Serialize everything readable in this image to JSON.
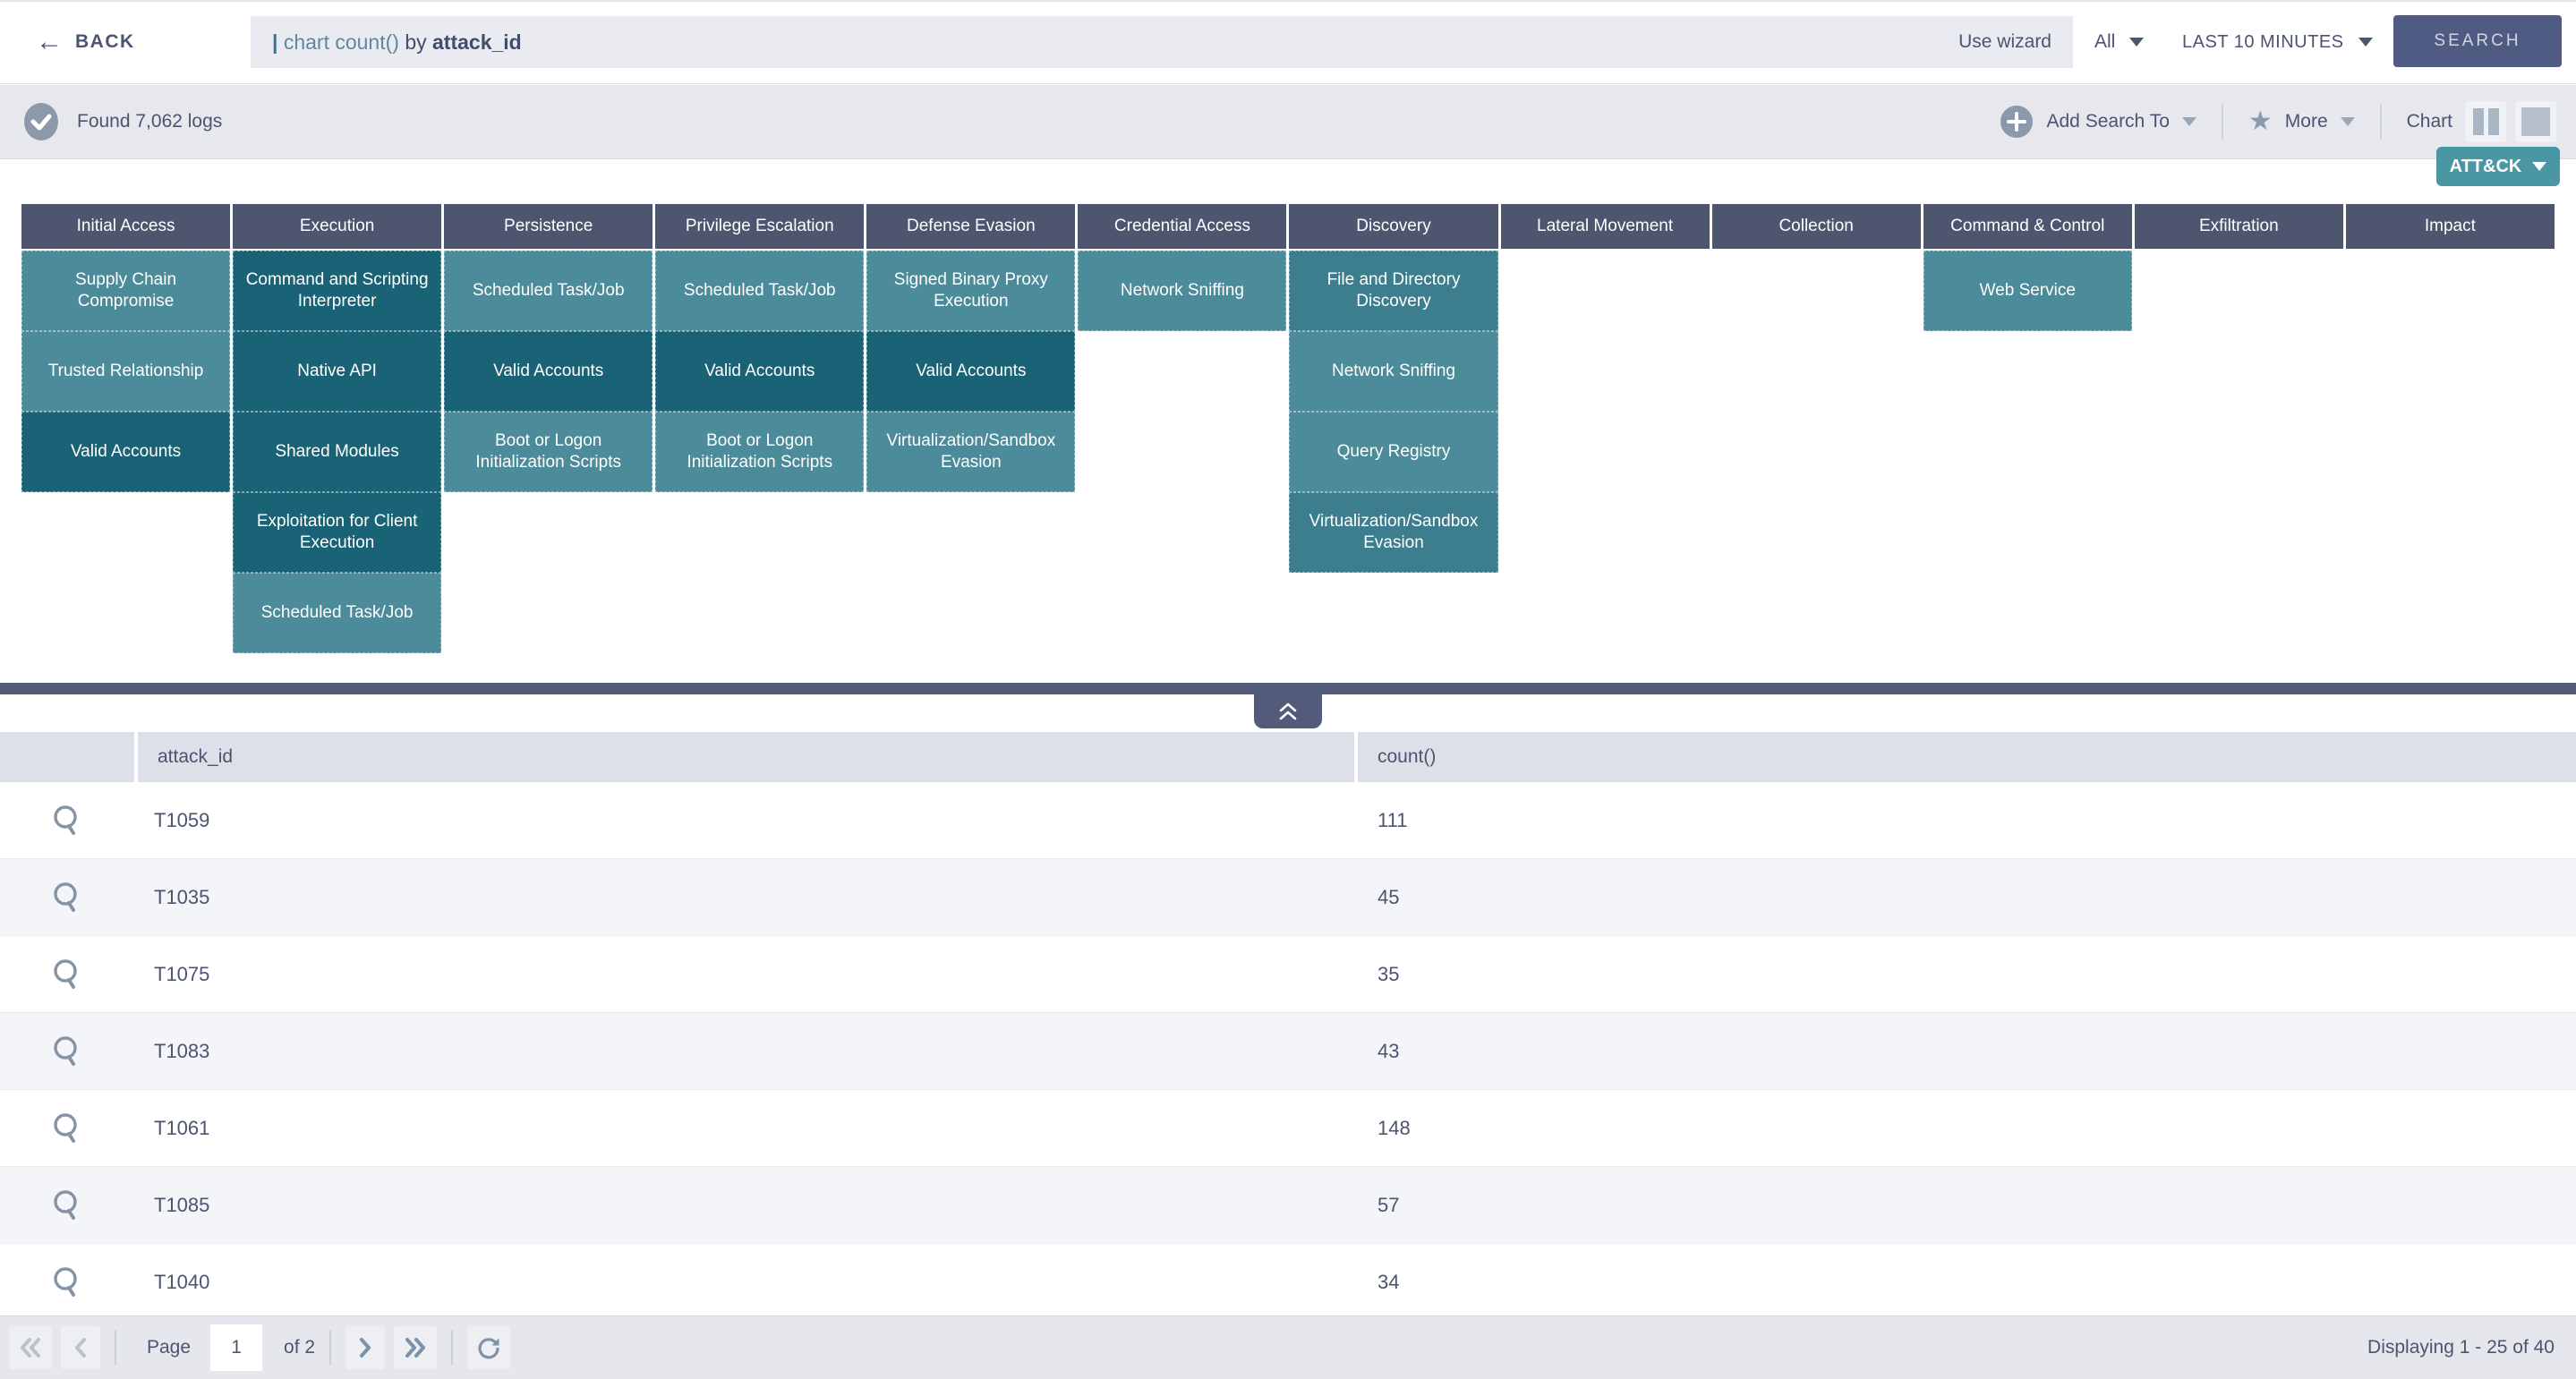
{
  "topbar": {
    "back_label": "BACK",
    "query": {
      "pipe": "|",
      "command": " chart count() ",
      "keyword": "by ",
      "field": "attack_id"
    },
    "use_wizard": "Use wizard",
    "scope": "All",
    "time_range": "LAST 10 MINUTES",
    "search_label": "SEARCH"
  },
  "toolbar": {
    "found": "Found 7,062 logs",
    "add_search_to": "Add Search To",
    "more": "More",
    "chart": "Chart"
  },
  "attack_button": "ATT&CK",
  "matrix": {
    "tactics": [
      {
        "name": "Initial Access",
        "techniques": [
          {
            "label": "Supply Chain Compromise",
            "shade": "light"
          },
          {
            "label": "Trusted Relationship",
            "shade": "light"
          },
          {
            "label": "Valid Accounts",
            "shade": "dark"
          }
        ]
      },
      {
        "name": "Execution",
        "techniques": [
          {
            "label": "Command and Scripting Interpreter",
            "shade": "dark"
          },
          {
            "label": "Native API",
            "shade": "dark"
          },
          {
            "label": "Shared Modules",
            "shade": "dark"
          },
          {
            "label": "Exploitation for Client Execution",
            "shade": "dark"
          },
          {
            "label": "Scheduled Task/Job",
            "shade": "light"
          }
        ]
      },
      {
        "name": "Persistence",
        "techniques": [
          {
            "label": "Scheduled Task/Job",
            "shade": "light"
          },
          {
            "label": "Valid Accounts",
            "shade": "dark"
          },
          {
            "label": "Boot or Logon Initialization Scripts",
            "shade": "light"
          }
        ]
      },
      {
        "name": "Privilege Escalation",
        "techniques": [
          {
            "label": "Scheduled Task/Job",
            "shade": "light"
          },
          {
            "label": "Valid Accounts",
            "shade": "dark"
          },
          {
            "label": "Boot or Logon Initialization Scripts",
            "shade": "light"
          }
        ]
      },
      {
        "name": "Defense Evasion",
        "techniques": [
          {
            "label": "Signed Binary Proxy Execution",
            "shade": "light"
          },
          {
            "label": "Valid Accounts",
            "shade": "dark"
          },
          {
            "label": "Virtualization/Sandbox Evasion",
            "shade": "light"
          }
        ]
      },
      {
        "name": "Credential Access",
        "techniques": [
          {
            "label": "Network Sniffing",
            "shade": "light"
          }
        ]
      },
      {
        "name": "Discovery",
        "techniques": [
          {
            "label": "File and Directory Discovery",
            "shade": "mid"
          },
          {
            "label": "Network Sniffing",
            "shade": "light"
          },
          {
            "label": "Query Registry",
            "shade": "light"
          },
          {
            "label": "Virtualization/Sandbox Evasion",
            "shade": "mid"
          }
        ]
      },
      {
        "name": "Lateral Movement",
        "techniques": []
      },
      {
        "name": "Collection",
        "techniques": []
      },
      {
        "name": "Command & Control",
        "techniques": [
          {
            "label": "Web Service",
            "shade": "light"
          }
        ]
      },
      {
        "name": "Exfiltration",
        "techniques": []
      },
      {
        "name": "Impact",
        "techniques": []
      }
    ]
  },
  "table": {
    "headers": {
      "attack_id": "attack_id",
      "count": "count()"
    },
    "rows": [
      {
        "attack_id": "T1059",
        "count": "111"
      },
      {
        "attack_id": "T1035",
        "count": "45"
      },
      {
        "attack_id": "T1075",
        "count": "35"
      },
      {
        "attack_id": "T1083",
        "count": "43"
      },
      {
        "attack_id": "T1061",
        "count": "148"
      },
      {
        "attack_id": "T1085",
        "count": "57"
      },
      {
        "attack_id": "T1040",
        "count": "34"
      }
    ]
  },
  "pagination": {
    "page_label": "Page",
    "page_value": "1",
    "of_label": "of 2",
    "displaying": "Displaying 1 - 25 of 40"
  },
  "colors": {
    "teal_light": "#4c8b99",
    "teal_mid": "#3c7e8e",
    "teal_dark": "#1a6376",
    "tactic_header": "#4d566e",
    "divider": "#525b79",
    "attack_button": "#4a96a3",
    "search_button": "#4f5b82",
    "text_slate": "#4b5470"
  }
}
